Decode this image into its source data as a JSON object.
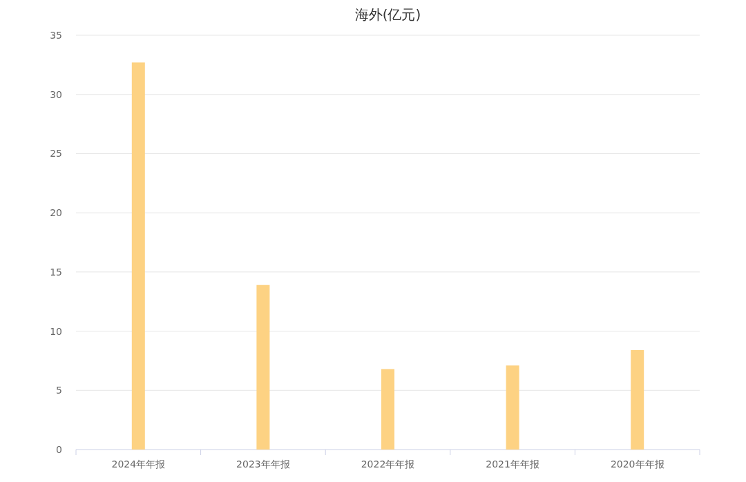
{
  "chart_data": {
    "type": "bar",
    "title": "海外(亿元)",
    "categories": [
      "2024年年报",
      "2023年年报",
      "2022年年报",
      "2021年年报",
      "2020年年报"
    ],
    "values": [
      32.7,
      13.9,
      6.8,
      7.1,
      8.4
    ],
    "color": "#fdd283",
    "ylim": [
      0,
      35
    ],
    "yticks": [
      0,
      5,
      10,
      15,
      20,
      25,
      30,
      35
    ],
    "grid": "y"
  }
}
